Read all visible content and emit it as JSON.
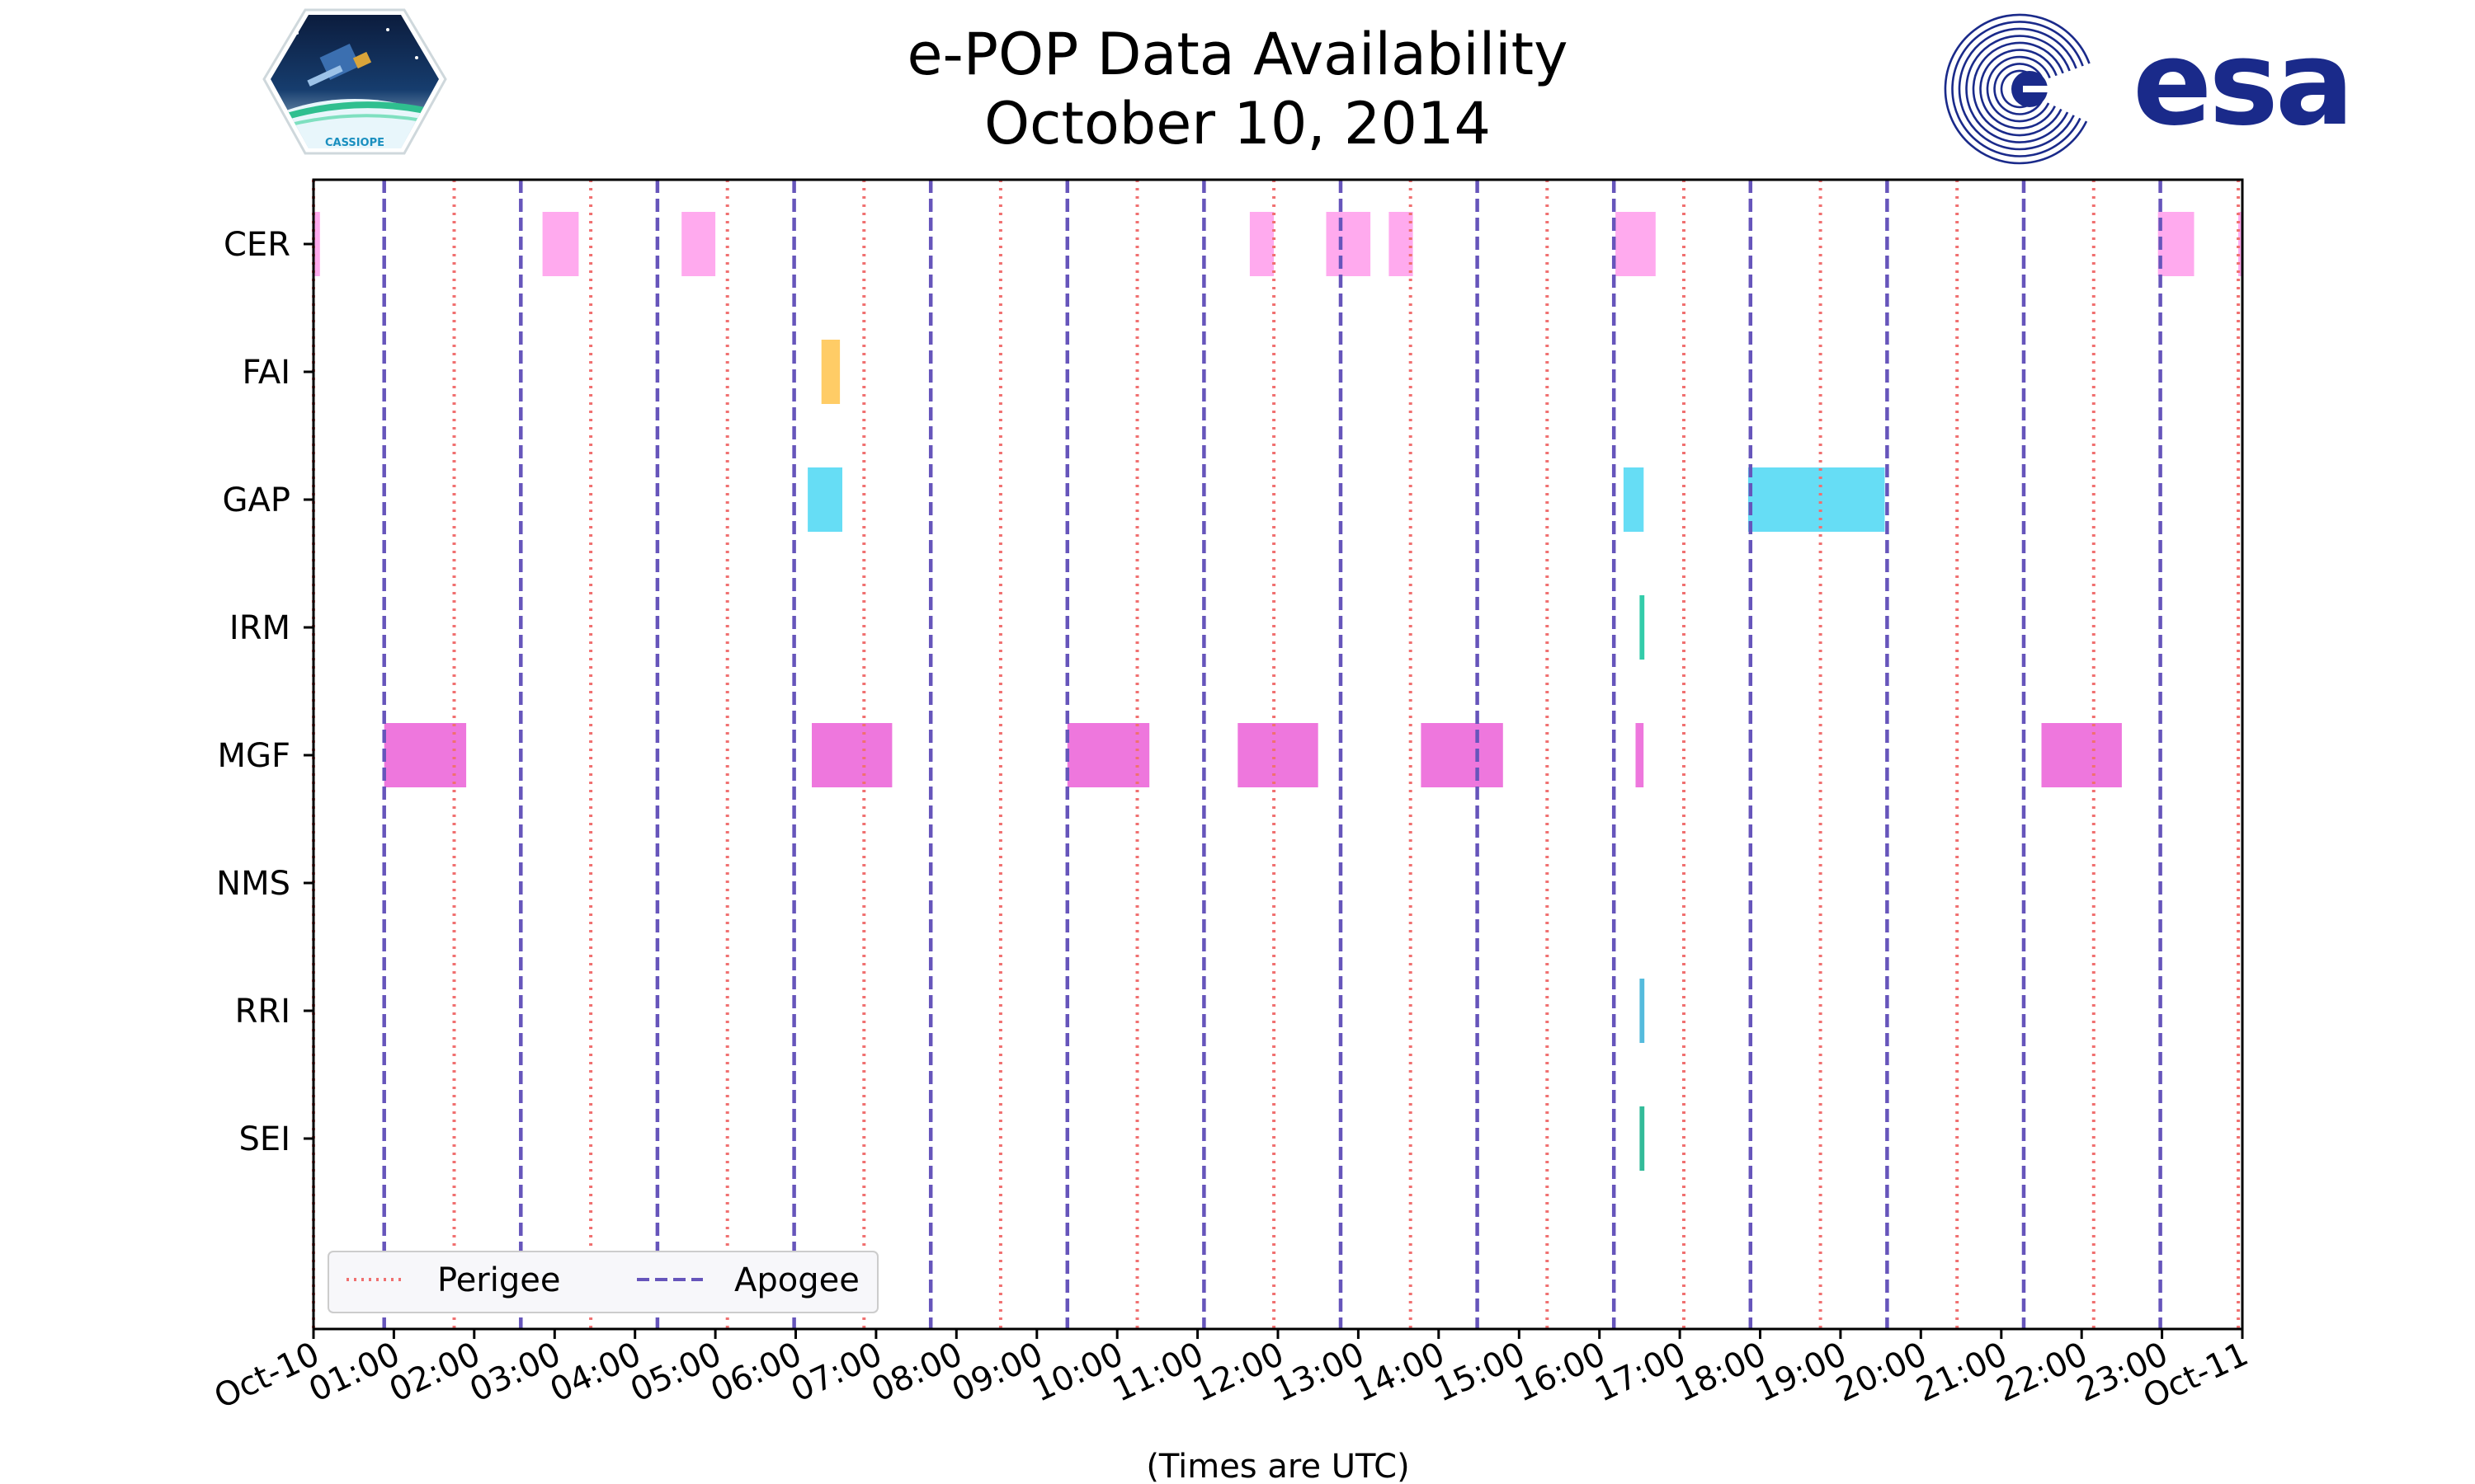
{
  "chart_data": {
    "type": "timeline",
    "title": "e-POP Data Availability",
    "subtitle": "October 10, 2014",
    "xlabel": "(Times are UTC)",
    "xlim_hours": [
      0,
      24
    ],
    "x_tick_labels": [
      "Oct-10",
      "01:00",
      "02:00",
      "03:00",
      "04:00",
      "05:00",
      "06:00",
      "07:00",
      "08:00",
      "09:00",
      "10:00",
      "11:00",
      "12:00",
      "13:00",
      "14:00",
      "15:00",
      "16:00",
      "17:00",
      "18:00",
      "19:00",
      "20:00",
      "21:00",
      "22:00",
      "23:00",
      "Oct-11"
    ],
    "instruments": [
      "CER",
      "FAI",
      "GAP",
      "IRM",
      "MGF",
      "NMS",
      "RRI",
      "SEI"
    ],
    "perigee_hours": [
      0.0,
      1.75,
      3.45,
      5.15,
      6.85,
      8.55,
      10.25,
      11.95,
      13.65,
      15.35,
      17.05,
      18.75,
      20.45,
      22.15,
      23.95
    ],
    "apogee_hours": [
      0.88,
      2.58,
      4.28,
      5.98,
      7.68,
      9.38,
      11.08,
      12.78,
      14.48,
      16.18,
      17.88,
      19.58,
      21.28,
      22.98
    ],
    "legend": {
      "perigee_label": "Perigee",
      "apogee_label": "Apogee",
      "location": "lower-left"
    },
    "series": [
      {
        "name": "CER",
        "color": "#ffaaee",
        "intervals": [
          [
            0.0,
            0.08
          ],
          [
            2.85,
            3.3
          ],
          [
            4.58,
            5.0
          ],
          [
            11.65,
            11.95
          ],
          [
            12.6,
            13.15
          ],
          [
            13.38,
            13.68
          ],
          [
            16.2,
            16.7
          ],
          [
            22.95,
            23.4
          ],
          [
            23.95,
            24.0
          ]
        ]
      },
      {
        "name": "FAI",
        "color": "#ffcc66",
        "intervals": [
          [
            6.32,
            6.55
          ]
        ]
      },
      {
        "name": "GAP",
        "color": "#66ddf5",
        "intervals": [
          [
            6.15,
            6.58
          ],
          [
            16.3,
            16.55
          ],
          [
            17.85,
            19.55
          ]
        ]
      },
      {
        "name": "IRM",
        "color": "#33ccaa",
        "intervals": [
          [
            16.5,
            16.56
          ]
        ]
      },
      {
        "name": "MGF",
        "color": "#ee77dd",
        "intervals": [
          [
            0.88,
            1.9
          ],
          [
            6.2,
            7.2
          ],
          [
            9.38,
            10.4
          ],
          [
            11.5,
            12.5
          ],
          [
            13.78,
            14.8
          ],
          [
            16.45,
            16.55
          ],
          [
            21.5,
            22.5
          ]
        ]
      },
      {
        "name": "NMS",
        "color": "#bbbbbb",
        "intervals": []
      },
      {
        "name": "RRI",
        "color": "#55bbdd",
        "intervals": [
          [
            16.5,
            16.56
          ]
        ]
      },
      {
        "name": "SEI",
        "color": "#33bb99",
        "intervals": [
          [
            16.5,
            16.56
          ]
        ]
      }
    ]
  },
  "logos": {
    "left": {
      "name": "cassiope-logo",
      "text": "CASSIOPE"
    },
    "right": {
      "name": "esa-logo",
      "text": "esa"
    }
  },
  "colors": {
    "perigee": "#f07070",
    "apogee": "#6655bb",
    "esa_blue": "#1a2a8a"
  }
}
